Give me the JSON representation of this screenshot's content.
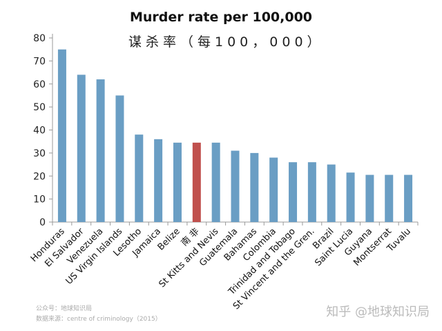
{
  "chart_data": {
    "type": "bar",
    "title": "Murder rate per 100,000",
    "subtitle": "谋杀率（每100，000）",
    "categories": [
      "Honduras",
      "El Salvador",
      "Venezuela",
      "US Virgin Islands",
      "Lesotho",
      "Jamaica",
      "Belize",
      "南 非",
      "St Kitts and Nevis",
      "Guatemala",
      "Bahamas",
      "Colombia",
      "Trinidad and Tobago",
      "St Vincent and the Gren.",
      "Brazil",
      "Saint Lucia",
      "Guyana",
      "Montserrat",
      "Tuvalu"
    ],
    "values": [
      75,
      64,
      62,
      55,
      38,
      36,
      34.5,
      34.5,
      34.5,
      31,
      30,
      28,
      26,
      26,
      25,
      21.5,
      20.5,
      20.5,
      20.5
    ],
    "highlight_index": 7,
    "ylim": [
      0,
      80
    ],
    "yticks": [
      0,
      10,
      20,
      30,
      40,
      50,
      60,
      70,
      80
    ],
    "grid": false,
    "colors": {
      "bar": "#6a9ec4",
      "highlight": "#c0504d"
    }
  },
  "footer": {
    "account": "公众号：地球知识局",
    "source": "数据来源：centre of criminology（2015）",
    "watermark": "知乎 @地球知识局"
  }
}
